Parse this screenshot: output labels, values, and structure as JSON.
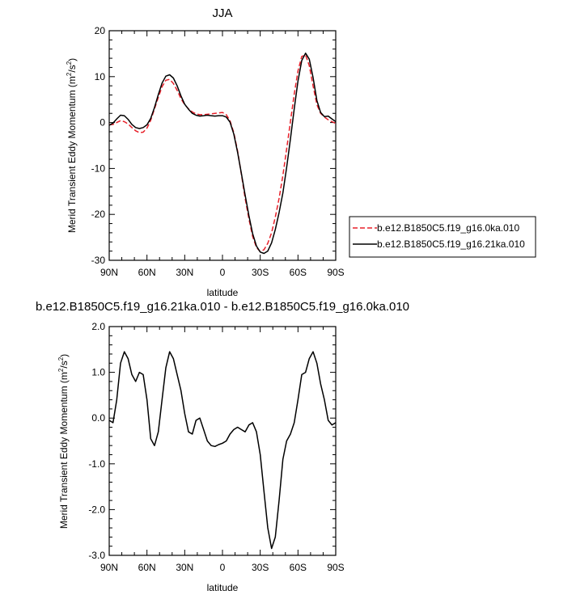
{
  "chart_data": [
    {
      "type": "line",
      "title": "JJA",
      "subtitle": "",
      "xlabel": "latitude",
      "ylabel": "Merid Transient Eddy Momentum (m",
      "ylabel_sup": "2",
      "ylabel_mid": "/s",
      "ylabel_end": ")",
      "x_ticks": [
        {
          "value": -90,
          "label": "90N"
        },
        {
          "value": -60,
          "label": "60N"
        },
        {
          "value": -30,
          "label": "30N"
        },
        {
          "value": 0,
          "label": "0"
        },
        {
          "value": 30,
          "label": "30S"
        },
        {
          "value": 60,
          "label": "60S"
        },
        {
          "value": 90,
          "label": "90S"
        }
      ],
      "y_ticks": [
        {
          "value": -30,
          "label": "-30"
        },
        {
          "value": -20,
          "label": "-20"
        },
        {
          "value": -10,
          "label": "-10"
        },
        {
          "value": 0,
          "label": "0"
        },
        {
          "value": 10,
          "label": "10"
        },
        {
          "value": 20,
          "label": "20"
        }
      ],
      "xlim": [
        -90,
        90
      ],
      "ylim": [
        -30,
        20
      ],
      "grid": false,
      "legend_position": "right",
      "series": [
        {
          "name": "b.e12.B1850C5.f19_g16.0ka.010",
          "color": "#e8202a",
          "dash": true,
          "x": [
            -90,
            -87,
            -84,
            -81,
            -78,
            -75,
            -72,
            -69,
            -66,
            -63,
            -60,
            -57,
            -54,
            -51,
            -48,
            -45,
            -42,
            -39,
            -36,
            -33,
            -30,
            -27,
            -24,
            -21,
            -18,
            -15,
            -12,
            -9,
            -6,
            -3,
            0,
            3,
            6,
            9,
            12,
            15,
            18,
            21,
            24,
            27,
            30,
            33,
            36,
            39,
            42,
            45,
            48,
            51,
            54,
            57,
            60,
            63,
            66,
            69,
            72,
            75,
            78,
            81,
            84,
            87,
            90
          ],
          "y": [
            -0.5,
            -0.4,
            0.0,
            0.4,
            0.2,
            -0.3,
            -1.1,
            -1.8,
            -2.2,
            -2.1,
            -1.2,
            0.5,
            3.0,
            5.5,
            7.8,
            9.2,
            9.4,
            8.5,
            7.0,
            5.2,
            3.9,
            3.0,
            2.3,
            1.9,
            1.7,
            1.7,
            1.8,
            1.9,
            2.0,
            2.1,
            2.2,
            1.7,
            0.4,
            -2.2,
            -6.2,
            -11.2,
            -16.5,
            -21.0,
            -24.8,
            -27.2,
            -28.1,
            -27.7,
            -26.3,
            -24.0,
            -20.6,
            -16.5,
            -11.5,
            -5.8,
            0.2,
            6.2,
            11.2,
            14.4,
            14.7,
            12.4,
            8.0,
            3.9,
            2.0,
            1.2,
            0.6,
            0.2,
            -0.2
          ]
        },
        {
          "name": "b.e12.B1850C5.f19_g16.21ka.010",
          "color": "#000000",
          "dash": false,
          "x": [
            -90,
            -87,
            -84,
            -81,
            -78,
            -75,
            -72,
            -69,
            -66,
            -63,
            -60,
            -57,
            -54,
            -51,
            -48,
            -45,
            -42,
            -39,
            -36,
            -33,
            -30,
            -27,
            -24,
            -21,
            -18,
            -15,
            -12,
            -9,
            -6,
            -3,
            0,
            3,
            6,
            9,
            12,
            15,
            18,
            21,
            24,
            27,
            30,
            33,
            36,
            39,
            42,
            45,
            48,
            51,
            54,
            57,
            60,
            63,
            66,
            69,
            72,
            75,
            78,
            81,
            84,
            87,
            90
          ],
          "y": [
            -0.6,
            -0.1,
            0.8,
            1.6,
            1.5,
            0.7,
            -0.4,
            -1.1,
            -1.3,
            -1.1,
            -0.5,
            0.9,
            3.3,
            6.1,
            8.6,
            10.1,
            10.4,
            9.7,
            8.0,
            5.8,
            4.0,
            2.9,
            2.0,
            1.6,
            1.4,
            1.5,
            1.6,
            1.5,
            1.4,
            1.5,
            1.5,
            1.2,
            0.1,
            -2.5,
            -6.5,
            -11.0,
            -15.8,
            -20.3,
            -24.2,
            -26.9,
            -28.2,
            -28.5,
            -28.0,
            -26.2,
            -23.3,
            -19.6,
            -15.3,
            -9.8,
            -3.6,
            3.0,
            9.0,
            13.5,
            15.1,
            13.8,
            9.8,
            4.8,
            2.2,
            1.3,
            1.4,
            0.8,
            0.2
          ]
        }
      ],
      "legend": [
        {
          "label": "b.e12.B1850C5.f19_g16.0ka.010",
          "color": "#e8202a",
          "dash": true
        },
        {
          "label": "b.e12.B1850C5.f19_g16.21ka.010",
          "color": "#000000",
          "dash": false
        }
      ]
    },
    {
      "type": "line",
      "title": "b.e12.B1850C5.f19_g16.21ka.010 - b.e12.B1850C5.f19_g16.0ka.010",
      "subtitle": "",
      "xlabel": "latitude",
      "ylabel": "Merid Transient Eddy Momentum (m",
      "ylabel_sup": "2",
      "ylabel_mid": "/s",
      "ylabel_end": ")",
      "x_ticks": [
        {
          "value": -90,
          "label": "90N"
        },
        {
          "value": -60,
          "label": "60N"
        },
        {
          "value": -30,
          "label": "30N"
        },
        {
          "value": 0,
          "label": "0"
        },
        {
          "value": 30,
          "label": "30S"
        },
        {
          "value": 60,
          "label": "60S"
        },
        {
          "value": 90,
          "label": "90S"
        }
      ],
      "y_ticks": [
        {
          "value": -3.0,
          "label": "-3.0"
        },
        {
          "value": -2.0,
          "label": "-2.0"
        },
        {
          "value": -1.0,
          "label": "-1.0"
        },
        {
          "value": 0.0,
          "label": "0.0"
        },
        {
          "value": 1.0,
          "label": "1.0"
        },
        {
          "value": 2.0,
          "label": "2.0"
        }
      ],
      "xlim": [
        -90,
        90
      ],
      "ylim": [
        -3.0,
        2.0
      ],
      "grid": false,
      "series": [
        {
          "name": "",
          "color": "#000000",
          "dash": false,
          "x": [
            -90,
            -87,
            -84,
            -81,
            -78,
            -75,
            -72,
            -69,
            -66,
            -63,
            -60,
            -57,
            -54,
            -51,
            -48,
            -45,
            -42,
            -39,
            -36,
            -33,
            -30,
            -27,
            -24,
            -21,
            -18,
            -15,
            -12,
            -9,
            -6,
            -3,
            0,
            3,
            6,
            9,
            12,
            15,
            18,
            21,
            24,
            27,
            30,
            33,
            36,
            39,
            42,
            45,
            48,
            51,
            54,
            57,
            60,
            63,
            66,
            69,
            72,
            75,
            78,
            81,
            84,
            87,
            90
          ],
          "y": [
            -0.05,
            -0.1,
            0.4,
            1.2,
            1.45,
            1.3,
            0.95,
            0.8,
            1.0,
            0.95,
            0.4,
            -0.45,
            -0.6,
            -0.3,
            0.4,
            1.1,
            1.45,
            1.3,
            0.95,
            0.6,
            0.1,
            -0.3,
            -0.35,
            -0.05,
            0.0,
            -0.25,
            -0.5,
            -0.6,
            -0.62,
            -0.58,
            -0.55,
            -0.5,
            -0.35,
            -0.25,
            -0.2,
            -0.25,
            -0.3,
            -0.15,
            -0.1,
            -0.3,
            -0.8,
            -1.6,
            -2.4,
            -2.85,
            -2.6,
            -1.8,
            -0.9,
            -0.5,
            -0.35,
            -0.1,
            0.4,
            0.95,
            1.0,
            1.3,
            1.45,
            1.2,
            0.75,
            0.4,
            -0.05,
            -0.15,
            -0.1
          ]
        }
      ]
    }
  ]
}
